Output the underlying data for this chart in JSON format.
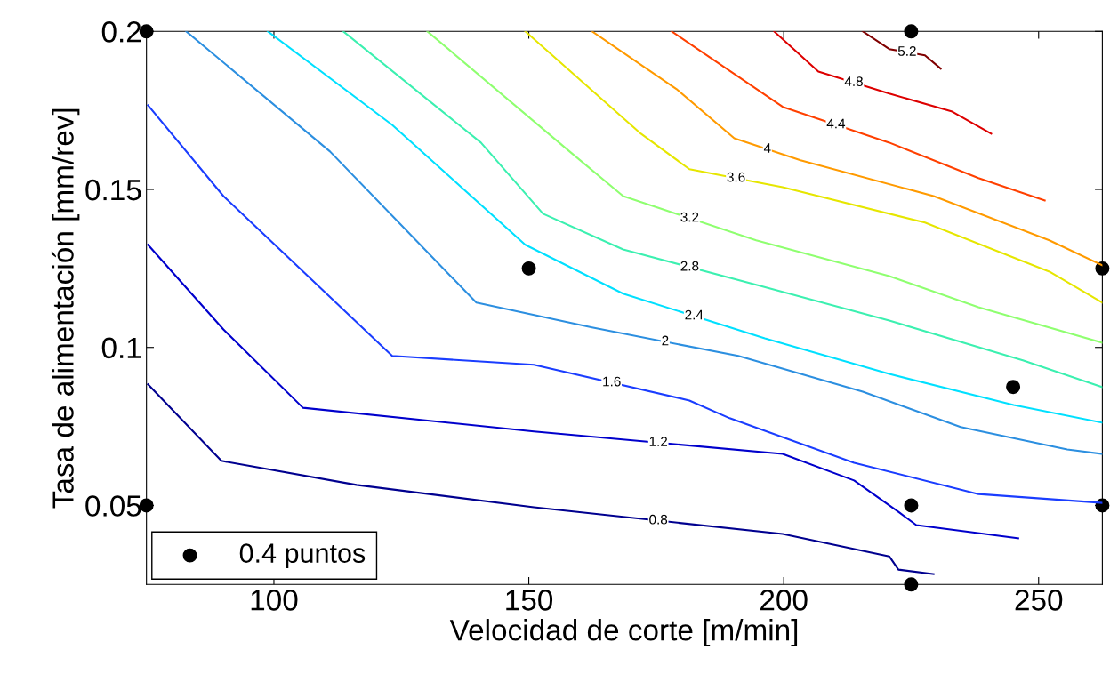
{
  "chart_data": {
    "type": "line",
    "xlabel": "Velocidad de corte [m/min]",
    "ylabel": "Tasa de alimentación [mm/rev]",
    "xlim": [
      75,
      262.5
    ],
    "ylim": [
      0.025,
      0.2
    ],
    "xticks": [
      100,
      150,
      200,
      250
    ],
    "yticks": [
      0.05,
      0.1,
      0.15,
      0.2
    ],
    "grid": false,
    "legend": "bottom left",
    "marker": "none",
    "line_style": "solid",
    "series": [
      {
        "name": "0.8",
        "color": "#00008f",
        "x": [
          75.3,
          89.7,
          116.2,
          151.0,
          199.8,
          220.7,
          222.5,
          229.4
        ],
        "values": [
          0.0883,
          0.0641,
          0.0565,
          0.0494,
          0.041,
          0.0339,
          0.0297,
          0.0283
        ]
      },
      {
        "name": "1.2",
        "color": "#0000cc",
        "x": [
          75.3,
          90.1,
          105.7,
          151.0,
          199.8,
          213.8,
          222.5,
          226.0,
          246.0
        ],
        "values": [
          0.1325,
          0.1057,
          0.0809,
          0.0734,
          0.0663,
          0.0579,
          0.048,
          0.0438,
          0.0396
        ]
      },
      {
        "name": "1.6",
        "color": "#1a3dff",
        "x": [
          75.3,
          90.1,
          123.2,
          151.0,
          181.5,
          189.4,
          213.8,
          238.2,
          262.5
        ],
        "values": [
          0.1766,
          0.1479,
          0.0973,
          0.0945,
          0.0832,
          0.0776,
          0.0635,
          0.0536,
          0.0508
        ]
      },
      {
        "name": "2",
        "color": "#2c8fe0",
        "x": [
          82.8,
          111.0,
          139.7,
          162.4,
          191.1,
          215.5,
          234.7,
          255.6,
          262.5
        ],
        "values": [
          0.2,
          0.162,
          0.1142,
          0.1063,
          0.0973,
          0.086,
          0.0748,
          0.0677,
          0.0663
        ]
      },
      {
        "name": "2.4",
        "color": "#00e0ff",
        "x": [
          98.8,
          123.2,
          149.3,
          168.5,
          196.3,
          220.7,
          245.1,
          262.5
        ],
        "values": [
          0.2,
          0.1704,
          0.1325,
          0.117,
          0.1029,
          0.0916,
          0.0818,
          0.0762
        ]
      },
      {
        "name": "2.8",
        "color": "#3cf0b0",
        "x": [
          113.6,
          140.6,
          152.8,
          168.5,
          194.6,
          220.7,
          246.9,
          262.5
        ],
        "values": [
          0.2,
          0.1648,
          0.1423,
          0.131,
          0.1198,
          0.1085,
          0.0959,
          0.0874
        ]
      },
      {
        "name": "3.2",
        "color": "#8fff70",
        "x": [
          130.1,
          158.0,
          168.5,
          194.6,
          220.7,
          238.2,
          262.5
        ],
        "values": [
          0.2,
          0.162,
          0.1479,
          0.1339,
          0.1226,
          0.1127,
          0.1015
        ]
      },
      {
        "name": "3.6",
        "color": "#e6e600",
        "x": [
          149.3,
          172.0,
          181.5,
          199.8,
          227.7,
          252.1,
          262.5
        ],
        "values": [
          0.2,
          0.1676,
          0.1564,
          0.1507,
          0.1395,
          0.124,
          0.1142
        ]
      },
      {
        "name": "4",
        "color": "#ff9a00",
        "x": [
          162.4,
          179.0,
          190.3,
          203.3,
          229.4,
          252.1,
          262.5
        ],
        "values": [
          0.2,
          0.1817,
          0.1662,
          0.1592,
          0.1479,
          0.1339,
          0.126
        ]
      },
      {
        "name": "4.4",
        "color": "#ff4000",
        "x": [
          178.0,
          199.8,
          220.7,
          238.2,
          251.2
        ],
        "values": [
          0.2,
          0.1761,
          0.1648,
          0.1536,
          0.1465
        ]
      },
      {
        "name": "4.8",
        "color": "#dd0000",
        "x": [
          198.1,
          206.8,
          220.7,
          232.9,
          240.7
        ],
        "values": [
          0.2,
          0.1873,
          0.1803,
          0.1747,
          0.1676
        ]
      },
      {
        "name": "5.2",
        "color": "#800000",
        "x": [
          215.5,
          220.7,
          227.7,
          230.8
        ],
        "values": [
          0.2,
          0.1944,
          0.1924,
          0.1882
        ]
      },
      {
        "name": "0.4 puntos",
        "type": "scatter",
        "color": "#000000",
        "marker": "circle",
        "x": [
          75,
          75,
          150,
          225,
          262.5,
          245,
          225,
          262.5,
          225
        ],
        "values": [
          0.2,
          0.05,
          0.125,
          0.2,
          0.125,
          0.0875,
          0.05,
          0.05,
          0.025
        ]
      }
    ]
  }
}
